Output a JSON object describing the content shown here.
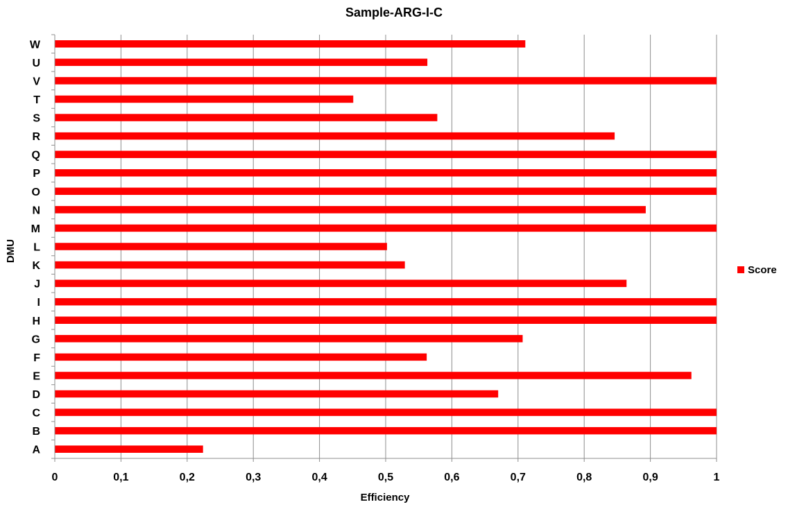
{
  "chart_data": {
    "type": "bar",
    "orientation": "horizontal",
    "title": "Sample-ARG-I-C",
    "xlabel": "Efficiency",
    "ylabel": "DMU",
    "xlim": [
      0,
      1
    ],
    "x_ticks": [
      "0",
      "0,1",
      "0,2",
      "0,3",
      "0,4",
      "0,5",
      "0,6",
      "0,7",
      "0,8",
      "0,9",
      "1"
    ],
    "grid": "vertical",
    "legend_position": "right",
    "categories": [
      "A",
      "B",
      "C",
      "D",
      "E",
      "F",
      "G",
      "H",
      "I",
      "J",
      "K",
      "L",
      "M",
      "N",
      "O",
      "P",
      "Q",
      "R",
      "S",
      "T",
      "V",
      "U",
      "W"
    ],
    "series": [
      {
        "name": "Score",
        "color": "#ff0000",
        "values": [
          0.224,
          1,
          1,
          0.67,
          0.962,
          0.562,
          0.707,
          1,
          1,
          0.864,
          0.529,
          0.502,
          1,
          0.893,
          1,
          1,
          1,
          0.846,
          0.578,
          0.451,
          1,
          0.563,
          0.711
        ]
      }
    ]
  }
}
